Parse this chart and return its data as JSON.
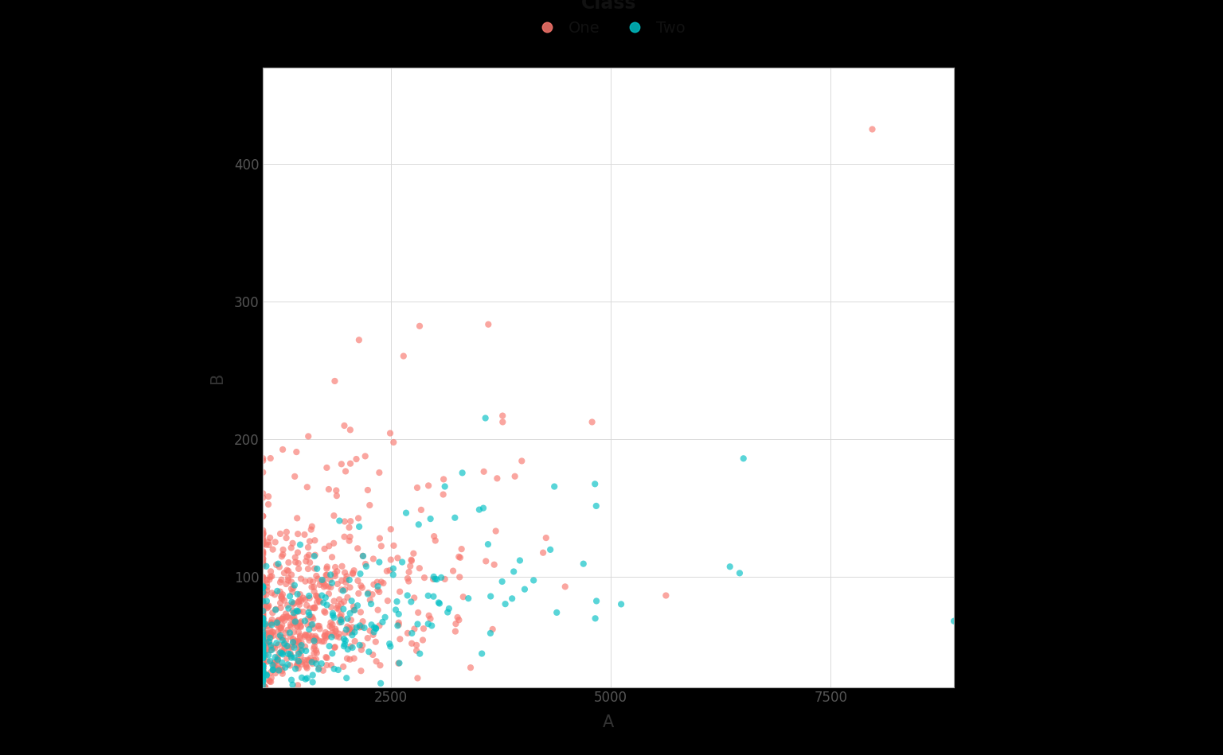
{
  "xlabel": "A",
  "ylabel": "B",
  "legend_title": "Class",
  "legend_labels": [
    "One",
    "Two"
  ],
  "color_one": "#F8766D",
  "color_two": "#00BFC4",
  "figure_facecolor": "#000000",
  "panel_background": "#FFFFFF",
  "grid_color": "#D9D9D9",
  "xlim": [
    1050,
    8900
  ],
  "ylim": [
    20,
    470
  ],
  "xticks": [
    2500,
    5000,
    7500
  ],
  "yticks": [
    100,
    200,
    300,
    400
  ],
  "seed": 42,
  "n_one": 700,
  "n_two": 250,
  "dot_size": 35,
  "dot_alpha": 0.65
}
